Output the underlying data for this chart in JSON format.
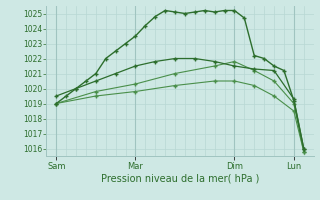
{
  "background_color": "#cee8e4",
  "grid_color": "#b8d8d4",
  "grid_color_major": "#a0c4c0",
  "line_color_dark": "#2d6e2d",
  "line_color_medium": "#3a7a3a",
  "line_color_light": "#4a8f4a",
  "ylabel_ticks": [
    1016,
    1017,
    1018,
    1019,
    1020,
    1021,
    1022,
    1023,
    1024,
    1025
  ],
  "ylim": [
    1015.5,
    1025.5
  ],
  "xlabel": "Pression niveau de la mer( hPa )",
  "xtick_labels": [
    "Sam",
    "Mar",
    "Dim",
    "Lun"
  ],
  "xtick_positions": [
    1,
    9,
    19,
    25
  ],
  "xlim": [
    0,
    27
  ],
  "series1": {
    "x": [
      1,
      2,
      3,
      4,
      5,
      6,
      7,
      8,
      9,
      10,
      11,
      12,
      13,
      14,
      15,
      16,
      17,
      18,
      19,
      20,
      21,
      22,
      23,
      24,
      25,
      26
    ],
    "y": [
      1019.0,
      1019.5,
      1020.0,
      1020.5,
      1021.0,
      1022.0,
      1022.5,
      1023.0,
      1023.5,
      1024.2,
      1024.8,
      1025.2,
      1025.1,
      1025.0,
      1025.1,
      1025.2,
      1025.1,
      1025.2,
      1025.2,
      1024.7,
      1022.2,
      1022.0,
      1021.5,
      1021.2,
      1019.2,
      1016.0
    ]
  },
  "series2": {
    "x": [
      1,
      3,
      5,
      7,
      9,
      11,
      13,
      15,
      17,
      19,
      21,
      23,
      25,
      26
    ],
    "y": [
      1019.5,
      1020.0,
      1020.5,
      1021.0,
      1021.5,
      1021.8,
      1022.0,
      1022.0,
      1021.8,
      1021.5,
      1021.3,
      1021.2,
      1019.3,
      1016.0
    ]
  },
  "series3": {
    "x": [
      1,
      5,
      9,
      13,
      17,
      19,
      21,
      23,
      25,
      26
    ],
    "y": [
      1019.0,
      1019.8,
      1020.3,
      1021.0,
      1021.5,
      1021.8,
      1021.2,
      1020.5,
      1019.0,
      1015.8
    ]
  },
  "series4": {
    "x": [
      1,
      5,
      9,
      13,
      17,
      19,
      21,
      23,
      25,
      26
    ],
    "y": [
      1019.0,
      1019.5,
      1019.8,
      1020.2,
      1020.5,
      1020.5,
      1020.2,
      1019.5,
      1018.5,
      1015.8
    ]
  }
}
